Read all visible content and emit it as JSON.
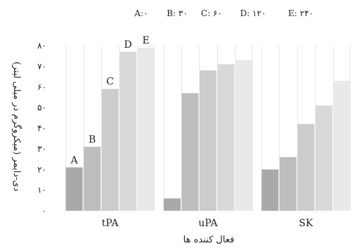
{
  "chart_data": {
    "type": "bar",
    "title": "",
    "legend": [
      {
        "key": "A",
        "text": "A:۰"
      },
      {
        "key": "B",
        "text": "B: ۳۰"
      },
      {
        "key": "C",
        "text": "C: ۶۰"
      },
      {
        "key": "D",
        "text": "D: ۱۲۰"
      },
      {
        "key": "E",
        "text": "E: ۲۴۰"
      }
    ],
    "legend_position": "top",
    "categories": [
      "tPA",
      "uPA",
      "SK"
    ],
    "series": [
      {
        "key": "A",
        "color": "#a9a9a9",
        "values": [
          21,
          6,
          20
        ]
      },
      {
        "key": "B",
        "color": "#bdbdbd",
        "values": [
          31,
          57,
          26
        ]
      },
      {
        "key": "C",
        "color": "#cccccc",
        "values": [
          59,
          68,
          42
        ]
      },
      {
        "key": "D",
        "color": "#d9d9d9",
        "values": [
          77,
          71,
          51
        ]
      },
      {
        "key": "E",
        "color": "#e9e9e9",
        "values": [
          79,
          73,
          63
        ]
      }
    ],
    "bar_labels_category": "tPA",
    "xlabel": "فعال کننده ها",
    "ylabel": "دی-دایمر (میکروگرم در میلی لیتر)",
    "ylim": [
      0,
      80
    ],
    "yticks": [
      0,
      10,
      20,
      30,
      40,
      50,
      60,
      70,
      80
    ],
    "ytick_labels": [
      "۰",
      "۱۰",
      "۲۰",
      "۳۰",
      "۴۰",
      "۵۰",
      "۶۰",
      "۷۰",
      "۸۰"
    ],
    "grid": "vertical"
  }
}
